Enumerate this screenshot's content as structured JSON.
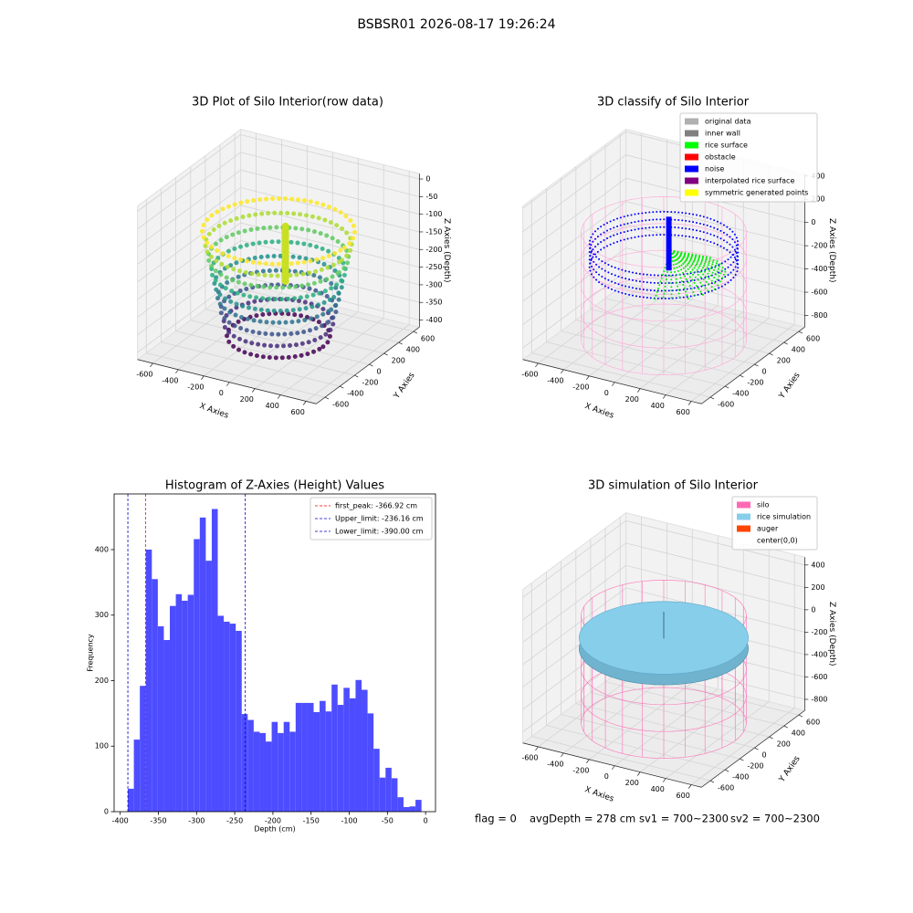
{
  "title": "BSBSR01 2026-08-17 19:26:24",
  "chart_data": [
    {
      "type": "scatter3d",
      "title": "3D Plot of Silo Interior(row data)",
      "xlabel": "X Axies",
      "ylabel": "Y Axies",
      "zlabel": "Z Axies (Depth)",
      "xlim": [
        -720,
        680
      ],
      "ylim": [
        -720,
        680
      ],
      "zlim": [
        -420,
        15
      ],
      "xticks": [
        -600,
        -400,
        -200,
        0,
        200,
        400,
        600
      ],
      "yticks": [
        -600,
        -400,
        -200,
        0,
        200,
        400,
        600
      ],
      "zticks": [
        0,
        -50,
        -100,
        -150,
        -200,
        -250,
        -300,
        -350,
        -400
      ],
      "grid": true
    },
    {
      "type": "scatter3d",
      "title": "3D classify of Silo Interior",
      "xlabel": "X Axies",
      "ylabel": "Y Axies",
      "zlabel": "Z Axies (Depth)",
      "xlim": [
        -720,
        680
      ],
      "ylim": [
        -720,
        680
      ],
      "zlim": [
        -900,
        420
      ],
      "xticks": [
        -600,
        -400,
        -200,
        0,
        200,
        400,
        600
      ],
      "yticks": [
        -600,
        -400,
        -200,
        0,
        200,
        400,
        600
      ],
      "zticks": [
        -800,
        -600,
        -400,
        -200,
        0,
        200,
        400
      ],
      "grid": true,
      "legend": "upper right",
      "series": [
        {
          "name": "original data",
          "color": "#b0b0b0"
        },
        {
          "name": "inner wall",
          "color": "#808080"
        },
        {
          "name": "rice surface",
          "color": "#00ff00"
        },
        {
          "name": "obstacle",
          "color": "#ff0000"
        },
        {
          "name": "noise",
          "color": "#0000ff"
        },
        {
          "name": "interpolated rice surface",
          "color": "#800080"
        },
        {
          "name": "symmetric generated points",
          "color": "#ffff00"
        }
      ]
    },
    {
      "type": "histogram",
      "title": "Histogram of Z-Axies (Height) Values",
      "xlabel": "Depth (cm)",
      "ylabel": "Frequency",
      "color": "#4d4dff",
      "xlim": [
        -408,
        13
      ],
      "ylim": [
        0,
        485
      ],
      "xticks": [
        -400,
        -350,
        -300,
        -250,
        -200,
        -150,
        -100,
        -50,
        0
      ],
      "yticks": [
        0,
        100,
        200,
        300,
        400
      ],
      "legend": "upper right",
      "bins": [
        -390,
        -382.15,
        -374.3,
        -366.45,
        -358.6,
        -350.75,
        -342.9,
        -335.05,
        -327.2,
        -319.35,
        -311.5,
        -303.65,
        -295.8,
        -287.95,
        -280.1,
        -272.25,
        -264.4,
        -256.55,
        -248.7,
        -240.85,
        -233,
        -225.15,
        -217.3,
        -209.45,
        -201.6,
        -193.75,
        -185.9,
        -178.05,
        -170.2,
        -162.35,
        -154.5,
        -146.65,
        -138.8,
        -130.95,
        -123.1,
        -115.25,
        -107.4,
        -99.55,
        -91.7,
        -83.85,
        -76,
        -68.15,
        -60.3,
        -52.45,
        -44.6,
        -36.75,
        -28.9,
        -21.05,
        -13.2,
        -5.35
      ],
      "values": [
        35,
        110,
        192,
        400,
        355,
        283,
        262,
        314,
        332,
        322,
        331,
        416,
        449,
        383,
        462,
        299,
        290,
        287,
        276,
        149,
        140,
        122,
        120,
        107,
        137,
        120,
        137,
        122,
        166,
        166,
        166,
        152,
        169,
        153,
        194,
        163,
        189,
        173,
        201,
        186,
        150,
        96,
        52,
        67,
        51,
        22,
        7,
        8,
        18
      ],
      "vlines": [
        {
          "value": -366.92,
          "label": "first_peak: -366.92 cm",
          "color": "#ff0000"
        },
        {
          "value": -236.16,
          "label": "Upper_limit: -236.16 cm",
          "color": "#0000cc"
        },
        {
          "value": -390.0,
          "label": "Lower_limit: -390.00 cm",
          "color": "#0000cc"
        }
      ]
    },
    {
      "type": "surface3d",
      "title": "3D simulation of Silo Interior",
      "xlabel": "X Axies",
      "ylabel": "Y Axies",
      "zlabel": "Z Axies (Depth)",
      "xlim": [
        -720,
        680
      ],
      "ylim": [
        -720,
        680
      ],
      "zlim": [
        -900,
        470
      ],
      "xticks": [
        -600,
        -400,
        -200,
        0,
        200,
        400,
        600
      ],
      "yticks": [
        -600,
        -400,
        -200,
        0,
        200,
        400,
        600
      ],
      "zticks": [
        -800,
        -600,
        -400,
        -200,
        0,
        200,
        400
      ],
      "grid": true,
      "legend": "upper right",
      "series": [
        {
          "name": "silo",
          "color": "#ff69b4"
        },
        {
          "name": "rice simulation",
          "color": "#87ceeb"
        },
        {
          "name": "auger",
          "color": "#ff4500"
        },
        {
          "name": "center(0,0)",
          "color": "#ffffff"
        }
      ]
    }
  ],
  "footer": [
    "flag = 0",
    "avgDepth = 278 cm",
    "sv1 = 700~2300",
    "sv2 = 700~2300"
  ]
}
